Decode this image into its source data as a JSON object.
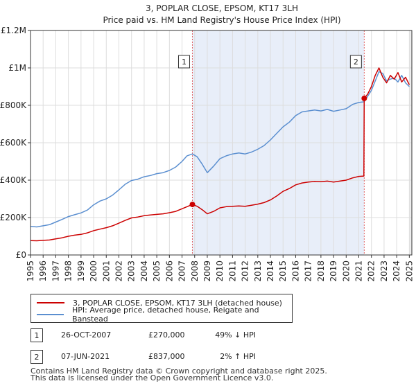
{
  "chart_data": {
    "type": "line",
    "title": "3, POPLAR CLOSE, EPSOM, KT17 3LH",
    "subtitle": "Price paid vs. HM Land Registry's House Price Index (HPI)",
    "xlabel": "",
    "ylabel": "",
    "xlim": [
      1995,
      2025.2
    ],
    "ylim": [
      0,
      1200000
    ],
    "y_ticks": [
      0,
      200000,
      400000,
      600000,
      800000,
      1000000,
      1200000
    ],
    "y_tick_labels": [
      "£0",
      "£200K",
      "£400K",
      "£600K",
      "£800K",
      "£1M",
      "£1.2M"
    ],
    "x_ticks": [
      "1995",
      "1996",
      "1997",
      "1998",
      "1999",
      "2000",
      "2001",
      "2002",
      "2003",
      "2004",
      "2005",
      "2006",
      "2007",
      "2008",
      "2009",
      "2010",
      "2011",
      "2012",
      "2013",
      "2014",
      "2015",
      "2016",
      "2017",
      "2018",
      "2019",
      "2020",
      "2021",
      "2022",
      "2023",
      "2024",
      "2025"
    ],
    "grid": true,
    "shaded_region": [
      2007.82,
      2021.43
    ],
    "colors": {
      "property": "#cc0000",
      "hpi": "#5b8fd0",
      "shade": "#e8eef9",
      "grid": "#dddddd",
      "marker_line": "#e06060"
    },
    "series": [
      {
        "name": "3, POPLAR CLOSE, EPSOM, KT17 3LH (detached house)",
        "color": "#cc0000",
        "x": [
          1995,
          1995.5,
          1996,
          1996.5,
          1997,
          1997.5,
          1998,
          1998.5,
          1999,
          1999.5,
          2000,
          2000.5,
          2001,
          2001.5,
          2002,
          2002.5,
          2003,
          2003.5,
          2004,
          2004.5,
          2005,
          2005.5,
          2006,
          2006.5,
          2007,
          2007.4,
          2007.82,
          2008.2,
          2008.6,
          2009,
          2009.5,
          2010,
          2010.5,
          2011,
          2011.5,
          2012,
          2012.5,
          2013,
          2013.5,
          2014,
          2014.5,
          2015,
          2015.5,
          2016,
          2016.5,
          2017,
          2017.5,
          2018,
          2018.5,
          2019,
          2019.5,
          2020,
          2020.5,
          2021,
          2021.4,
          2021.43,
          2021.7,
          2022,
          2022.3,
          2022.6,
          2022.9,
          2023.2,
          2023.5,
          2023.8,
          2024.1,
          2024.4,
          2024.7,
          2025
        ],
        "values": [
          77000,
          76000,
          78000,
          80000,
          86000,
          92000,
          100000,
          106000,
          110000,
          118000,
          130000,
          138000,
          146000,
          156000,
          170000,
          185000,
          198000,
          203000,
          210000,
          214000,
          217000,
          220000,
          226000,
          233000,
          247000,
          258000,
          270000,
          260000,
          242000,
          220000,
          233000,
          252000,
          258000,
          260000,
          262000,
          260000,
          266000,
          272000,
          280000,
          294000,
          315000,
          340000,
          355000,
          375000,
          385000,
          390000,
          393000,
          392000,
          395000,
          390000,
          395000,
          400000,
          412000,
          420000,
          422000,
          837000,
          860000,
          900000,
          960000,
          1000000,
          950000,
          920000,
          960000,
          940000,
          975000,
          925000,
          950000,
          910000
        ]
      },
      {
        "name": "HPI: Average price, detached house, Reigate and Banstead",
        "color": "#5b8fd0",
        "x": [
          1995,
          1995.5,
          1996,
          1996.5,
          1997,
          1997.5,
          1998,
          1998.5,
          1999,
          1999.5,
          2000,
          2000.5,
          2001,
          2001.5,
          2002,
          2002.5,
          2003,
          2003.5,
          2004,
          2004.5,
          2005,
          2005.5,
          2006,
          2006.5,
          2007,
          2007.4,
          2007.82,
          2008.2,
          2008.6,
          2009,
          2009.5,
          2010,
          2010.5,
          2011,
          2011.5,
          2012,
          2012.5,
          2013,
          2013.5,
          2014,
          2014.5,
          2015,
          2015.5,
          2016,
          2016.5,
          2017,
          2017.5,
          2018,
          2018.5,
          2019,
          2019.5,
          2020,
          2020.5,
          2021,
          2021.43,
          2021.7,
          2022,
          2022.3,
          2022.6,
          2022.9,
          2023.2,
          2023.5,
          2023.8,
          2024.1,
          2024.4,
          2024.7,
          2025
        ],
        "values": [
          153000,
          150000,
          156000,
          162000,
          176000,
          190000,
          205000,
          215000,
          225000,
          240000,
          268000,
          288000,
          300000,
          320000,
          348000,
          378000,
          398000,
          405000,
          418000,
          425000,
          435000,
          440000,
          452000,
          470000,
          500000,
          530000,
          540000,
          525000,
          485000,
          440000,
          475000,
          515000,
          530000,
          540000,
          545000,
          540000,
          550000,
          565000,
          585000,
          615000,
          650000,
          685000,
          710000,
          745000,
          765000,
          770000,
          775000,
          770000,
          778000,
          768000,
          775000,
          782000,
          805000,
          815000,
          819000,
          848000,
          880000,
          930000,
          980000,
          970000,
          930000,
          940000,
          945000,
          925000,
          960000,
          920000,
          900000
        ]
      }
    ],
    "markers": [
      {
        "label": "1",
        "x": 2007.82,
        "value": 270000
      },
      {
        "label": "2",
        "x": 2021.43,
        "value": 837000
      }
    ]
  },
  "legend": {
    "property_label": "3, POPLAR CLOSE, EPSOM, KT17 3LH (detached house)",
    "hpi_label": "HPI: Average price, detached house, Reigate and Banstead"
  },
  "transactions": [
    {
      "badge": "1",
      "date": "26-OCT-2007",
      "price": "£270,000",
      "hpi": "49% ↓ HPI"
    },
    {
      "badge": "2",
      "date": "07-JUN-2021",
      "price": "£837,000",
      "hpi": "2% ↑ HPI"
    }
  ],
  "footer": {
    "line1": "Contains HM Land Registry data © Crown copyright and database right 2025.",
    "line2": "This data is licensed under the Open Government Licence v3.0."
  }
}
